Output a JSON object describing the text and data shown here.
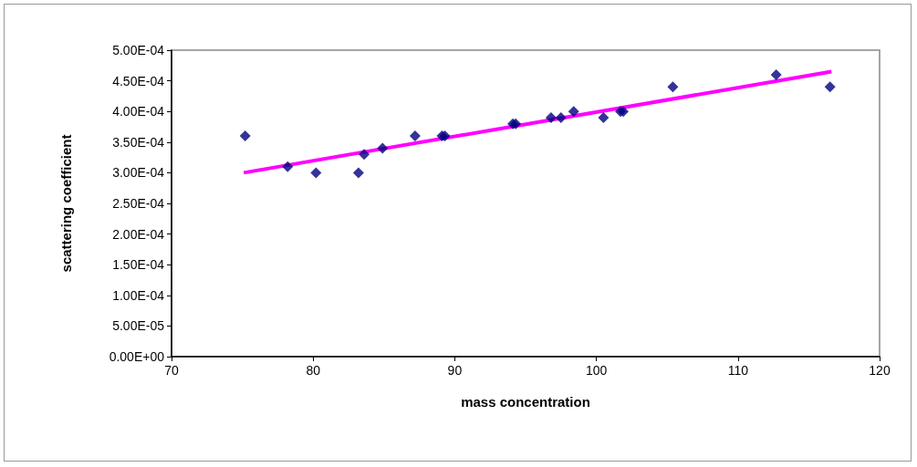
{
  "chart_data": {
    "type": "scatter",
    "xlabel": "mass concentration",
    "ylabel": "scattering coefficient",
    "xlim": [
      70,
      120
    ],
    "xticks": [
      70,
      80,
      90,
      100,
      110,
      120
    ],
    "ylim": [
      0,
      0.0005
    ],
    "yticks": [
      {
        "value": 0,
        "label": "0.00E+00"
      },
      {
        "value": 5e-05,
        "label": "5.00E-05"
      },
      {
        "value": 0.0001,
        "label": "1.00E-04"
      },
      {
        "value": 0.00015,
        "label": "1.50E-04"
      },
      {
        "value": 0.0002,
        "label": "2.00E-04"
      },
      {
        "value": 0.00025,
        "label": "2.50E-04"
      },
      {
        "value": 0.0003,
        "label": "3.00E-04"
      },
      {
        "value": 0.00035,
        "label": "3.50E-04"
      },
      {
        "value": 0.0004,
        "label": "4.00E-04"
      },
      {
        "value": 0.00045,
        "label": "4.50E-04"
      },
      {
        "value": 0.0005,
        "label": "5.00E-04"
      }
    ],
    "grid": false,
    "marker": "diamond",
    "series": [
      {
        "color": "#000080",
        "x": [
          75.2,
          78.2,
          80.2,
          83.2,
          83.6,
          84.9,
          87.2,
          89.1,
          89.3,
          94.1,
          94.3,
          96.8,
          97.5,
          98.4,
          100.5,
          101.7,
          101.9,
          105.4,
          112.7,
          116.5
        ],
        "values": [
          0.00036,
          0.00031,
          0.0003,
          0.0003,
          0.00033,
          0.00034,
          0.00036,
          0.00036,
          0.00036,
          0.00038,
          0.00038,
          0.00039,
          0.00039,
          0.0004,
          0.00039,
          0.0004,
          0.0004,
          0.00044,
          0.00046,
          0.00044
        ]
      },
      {
        "type": "line",
        "color": "#ff00ff",
        "marker": "none",
        "line_style": "solid",
        "x": [
          75.1,
          116.6
        ],
        "values": [
          0.0003,
          0.000465
        ]
      }
    ]
  }
}
